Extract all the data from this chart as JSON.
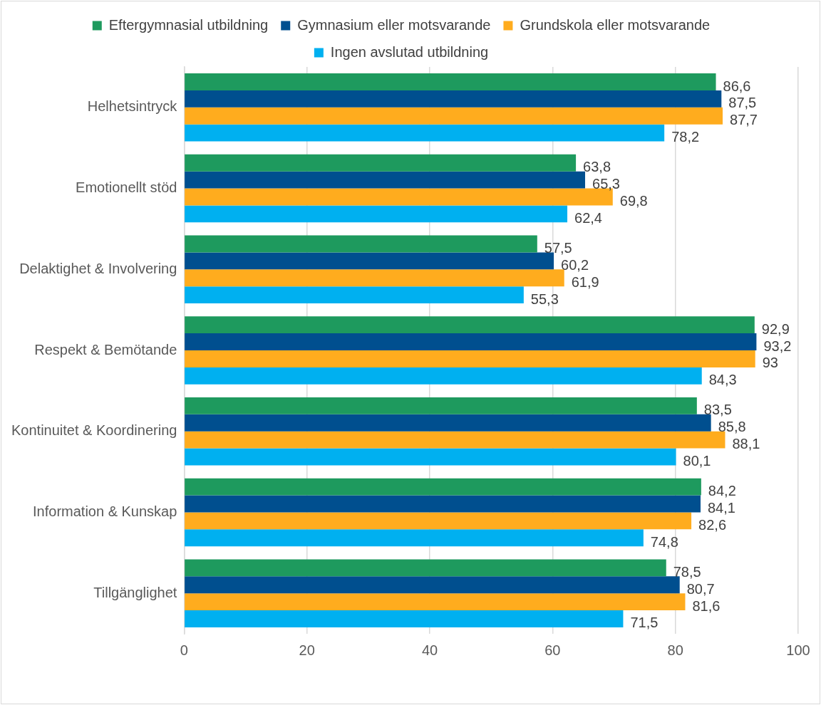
{
  "chart_data": {
    "type": "bar",
    "orientation": "horizontal",
    "categories": [
      "Helhetsintryck",
      "Emotionellt stöd",
      "Delaktighet & Involvering",
      "Respekt & Bemötande",
      "Kontinuitet & Koordinering",
      "Information & Kunskap",
      "Tillgänglighet"
    ],
    "series": [
      {
        "name": "Eftergymnasial utbildning",
        "color": "#1e9a5e",
        "values": [
          86.6,
          63.8,
          57.5,
          92.9,
          83.5,
          84.2,
          78.5
        ],
        "value_labels": [
          "86,6",
          "63,8",
          "57,5",
          "92,9",
          "83,5",
          "84,2",
          "78,5"
        ]
      },
      {
        "name": "Gymnasium eller motsvarande",
        "color": "#004f8f",
        "values": [
          87.5,
          65.3,
          60.2,
          93.2,
          85.8,
          84.1,
          80.7
        ],
        "value_labels": [
          "87,5",
          "65,3",
          "60,2",
          "93,2",
          "85,8",
          "84,1",
          "80,7"
        ]
      },
      {
        "name": "Grundskola eller motsvarande",
        "color": "#ffac1e",
        "values": [
          87.7,
          69.8,
          61.9,
          93,
          88.1,
          82.6,
          81.6
        ],
        "value_labels": [
          "87,7",
          "69,8",
          "61,9",
          "93",
          "88,1",
          "82,6",
          "81,6"
        ]
      },
      {
        "name": "Ingen avslutad utbildning",
        "color": "#00b0f0",
        "values": [
          78.2,
          62.4,
          55.3,
          84.3,
          80.1,
          74.8,
          71.5
        ],
        "value_labels": [
          "78,2",
          "62,4",
          "55,3",
          "84,3",
          "80,1",
          "74,8",
          "71,5"
        ]
      }
    ],
    "xlim": [
      0,
      100
    ],
    "xticks": [
      0,
      20,
      40,
      60,
      80,
      100
    ],
    "grid": "x",
    "legend": "top"
  }
}
